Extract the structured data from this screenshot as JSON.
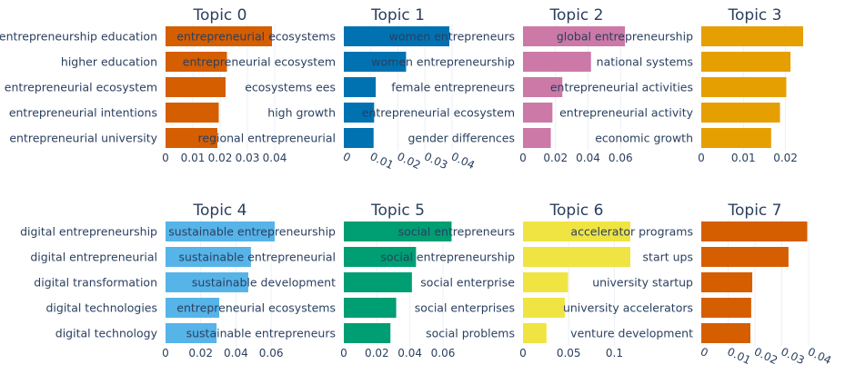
{
  "chart_data": [
    {
      "type": "bar",
      "orientation": "horizontal",
      "title": "Topic 0",
      "color": "#D55E00",
      "categories": [
        "entrepreneurship education",
        "higher education",
        "entrepreneurial ecosystem",
        "entrepreneurial intentions",
        "entrepreneurial university"
      ],
      "values": [
        0.039,
        0.0225,
        0.022,
        0.0195,
        0.019
      ],
      "xlim": [
        0,
        0.04
      ],
      "ticks": [
        "0",
        "0.01",
        "0.02",
        "0.03",
        "0.04"
      ],
      "tick_values": [
        0,
        0.01,
        0.02,
        0.03,
        0.04
      ],
      "tick_rotated": false
    },
    {
      "type": "bar",
      "orientation": "horizontal",
      "title": "Topic 1",
      "color": "#0072B2",
      "categories": [
        "entrepreneurial ecosystems",
        "entrepreneurial ecosystem",
        "ecosystems ees",
        "high growth",
        "regional entrepreneurial"
      ],
      "values": [
        0.039,
        0.023,
        0.0118,
        0.0112,
        0.011
      ],
      "xlim": [
        0,
        0.04
      ],
      "ticks": [
        "0",
        "0.01",
        "0.02",
        "0.03",
        "0.04"
      ],
      "tick_values": [
        0,
        0.01,
        0.02,
        0.03,
        0.04
      ],
      "tick_rotated": true
    },
    {
      "type": "bar",
      "orientation": "horizontal",
      "title": "Topic 2",
      "color": "#CC79A7",
      "categories": [
        "women entrepreneurs",
        "women entrepreneurship",
        "female entrepreneurs",
        "entrepreneurial ecosystem",
        "gender differences"
      ],
      "values": [
        0.0627,
        0.0418,
        0.0242,
        0.0181,
        0.0171
      ],
      "xlim": [
        0,
        0.066
      ],
      "ticks": [
        "0",
        "0.02",
        "0.04",
        "0.06"
      ],
      "tick_values": [
        0,
        0.02,
        0.04,
        0.06
      ],
      "tick_rotated": false
    },
    {
      "type": "bar",
      "orientation": "horizontal",
      "title": "Topic 3",
      "color": "#E69F00",
      "categories": [
        "global entrepreneurship",
        "national systems",
        "entrepreneurial activities",
        "entrepreneurial activity",
        "economic growth"
      ],
      "values": [
        0.0242,
        0.0212,
        0.0202,
        0.0187,
        0.0166
      ],
      "xlim": [
        0,
        0.0255
      ],
      "ticks": [
        "0",
        "0.01",
        "0.02"
      ],
      "tick_values": [
        0,
        0.01,
        0.02
      ],
      "tick_rotated": false
    },
    {
      "type": "bar",
      "orientation": "horizontal",
      "title": "Topic 4",
      "color": "#56B4E9",
      "categories": [
        "digital entrepreneurship",
        "digital entrepreneurial",
        "digital transformation",
        "digital technologies",
        "digital technology"
      ],
      "values": [
        0.062,
        0.0485,
        0.047,
        0.0305,
        0.029
      ],
      "xlim": [
        0,
        0.062
      ],
      "ticks": [
        "0",
        "0.02",
        "0.04",
        "0.06"
      ],
      "tick_values": [
        0,
        0.02,
        0.04,
        0.06
      ],
      "tick_rotated": false
    },
    {
      "type": "bar",
      "orientation": "horizontal",
      "title": "Topic 5",
      "color": "#009E73",
      "categories": [
        "sustainable entrepreneurship",
        "sustainable entrepreneurial",
        "sustainable development",
        "entrepreneurial ecosystems",
        "sustainable entrepreneurs"
      ],
      "values": [
        0.0652,
        0.0437,
        0.0412,
        0.0317,
        0.0282
      ],
      "xlim": [
        0,
        0.0655
      ],
      "ticks": [
        "0",
        "0.02",
        "0.04",
        "0.06"
      ],
      "tick_values": [
        0,
        0.02,
        0.04,
        0.06
      ],
      "tick_rotated": false
    },
    {
      "type": "bar",
      "orientation": "horizontal",
      "title": "Topic 6",
      "color": "#F0E442",
      "categories": [
        "social entrepreneurs",
        "social entrepreneurship",
        "social enterprise",
        "social enterprises",
        "social problems"
      ],
      "values": [
        0.1175,
        0.1175,
        0.0493,
        0.0457,
        0.0257
      ],
      "xlim": [
        0,
        0.1175
      ],
      "ticks": [
        "0",
        "0.05",
        "0.1"
      ],
      "tick_values": [
        0,
        0.05,
        0.1
      ],
      "tick_rotated": false
    },
    {
      "type": "bar",
      "orientation": "horizontal",
      "title": "Topic 7",
      "color": "#D55E00",
      "categories": [
        "accelerator programs",
        "start ups",
        "university startup",
        "university accelerators",
        "venture development"
      ],
      "values": [
        0.0395,
        0.0325,
        0.019,
        0.0186,
        0.0183
      ],
      "xlim": [
        0,
        0.04
      ],
      "ticks": [
        "0",
        "0.01",
        "0.02",
        "0.03",
        "0.04"
      ],
      "tick_values": [
        0,
        0.01,
        0.02,
        0.03,
        0.04
      ],
      "tick_rotated": true
    }
  ]
}
